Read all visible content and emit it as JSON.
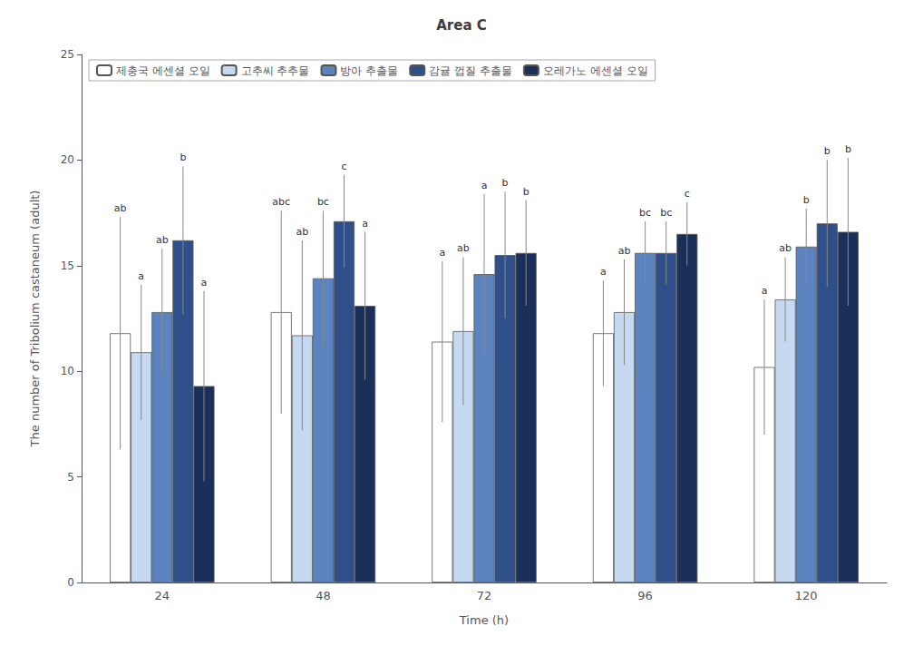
{
  "chart_data": {
    "type": "bar",
    "title": "Area C",
    "xlabel": "Time (h)",
    "ylabel": "The number of Tribolium castaneum (adult)",
    "categories": [
      "24",
      "48",
      "72",
      "96",
      "120"
    ],
    "series": [
      {
        "name": "제충국 에센셜 오일",
        "color": "#FFFFFF",
        "values": [
          11.8,
          12.8,
          11.4,
          11.8,
          10.2
        ],
        "errors": [
          5.5,
          4.8,
          3.8,
          2.5,
          3.2
        ],
        "annotations": [
          "ab",
          "abc",
          "a",
          "a",
          "a"
        ]
      },
      {
        "name": "고추씨 추추물",
        "color": "#C5D9F1",
        "values": [
          10.9,
          11.7,
          11.9,
          12.8,
          13.4
        ],
        "errors": [
          3.2,
          4.5,
          3.5,
          2.5,
          2.0
        ],
        "annotations": [
          "a",
          "ab",
          "ab",
          "ab",
          "ab"
        ]
      },
      {
        "name": "방아 추출물",
        "color": "#5B83C0",
        "values": [
          12.8,
          14.4,
          14.6,
          15.6,
          15.9
        ],
        "errors": [
          3.0,
          3.2,
          3.8,
          1.5,
          1.8
        ],
        "annotations": [
          "ab",
          "bc",
          "a",
          "bc",
          "b"
        ]
      },
      {
        "name": "감귤 껍질 추출물",
        "color": "#2E4F8A",
        "values": [
          16.2,
          17.1,
          15.5,
          15.6,
          17.0
        ],
        "errors": [
          3.5,
          2.2,
          3.0,
          1.5,
          3.0
        ],
        "annotations": [
          "b",
          "c",
          "b",
          "bc",
          "b"
        ]
      },
      {
        "name": "오레가노 에센셜 오일",
        "color": "#1A2F5A",
        "values": [
          9.3,
          13.1,
          15.6,
          16.5,
          16.6
        ],
        "errors": [
          4.5,
          3.5,
          2.5,
          1.5,
          3.5
        ],
        "annotations": [
          "a",
          "a",
          "b",
          "c",
          "b"
        ]
      }
    ],
    "ylim": [
      0,
      25
    ],
    "yticks": [
      0,
      5,
      10,
      15,
      20,
      25
    ],
    "grid": false,
    "legend": "upper left"
  }
}
